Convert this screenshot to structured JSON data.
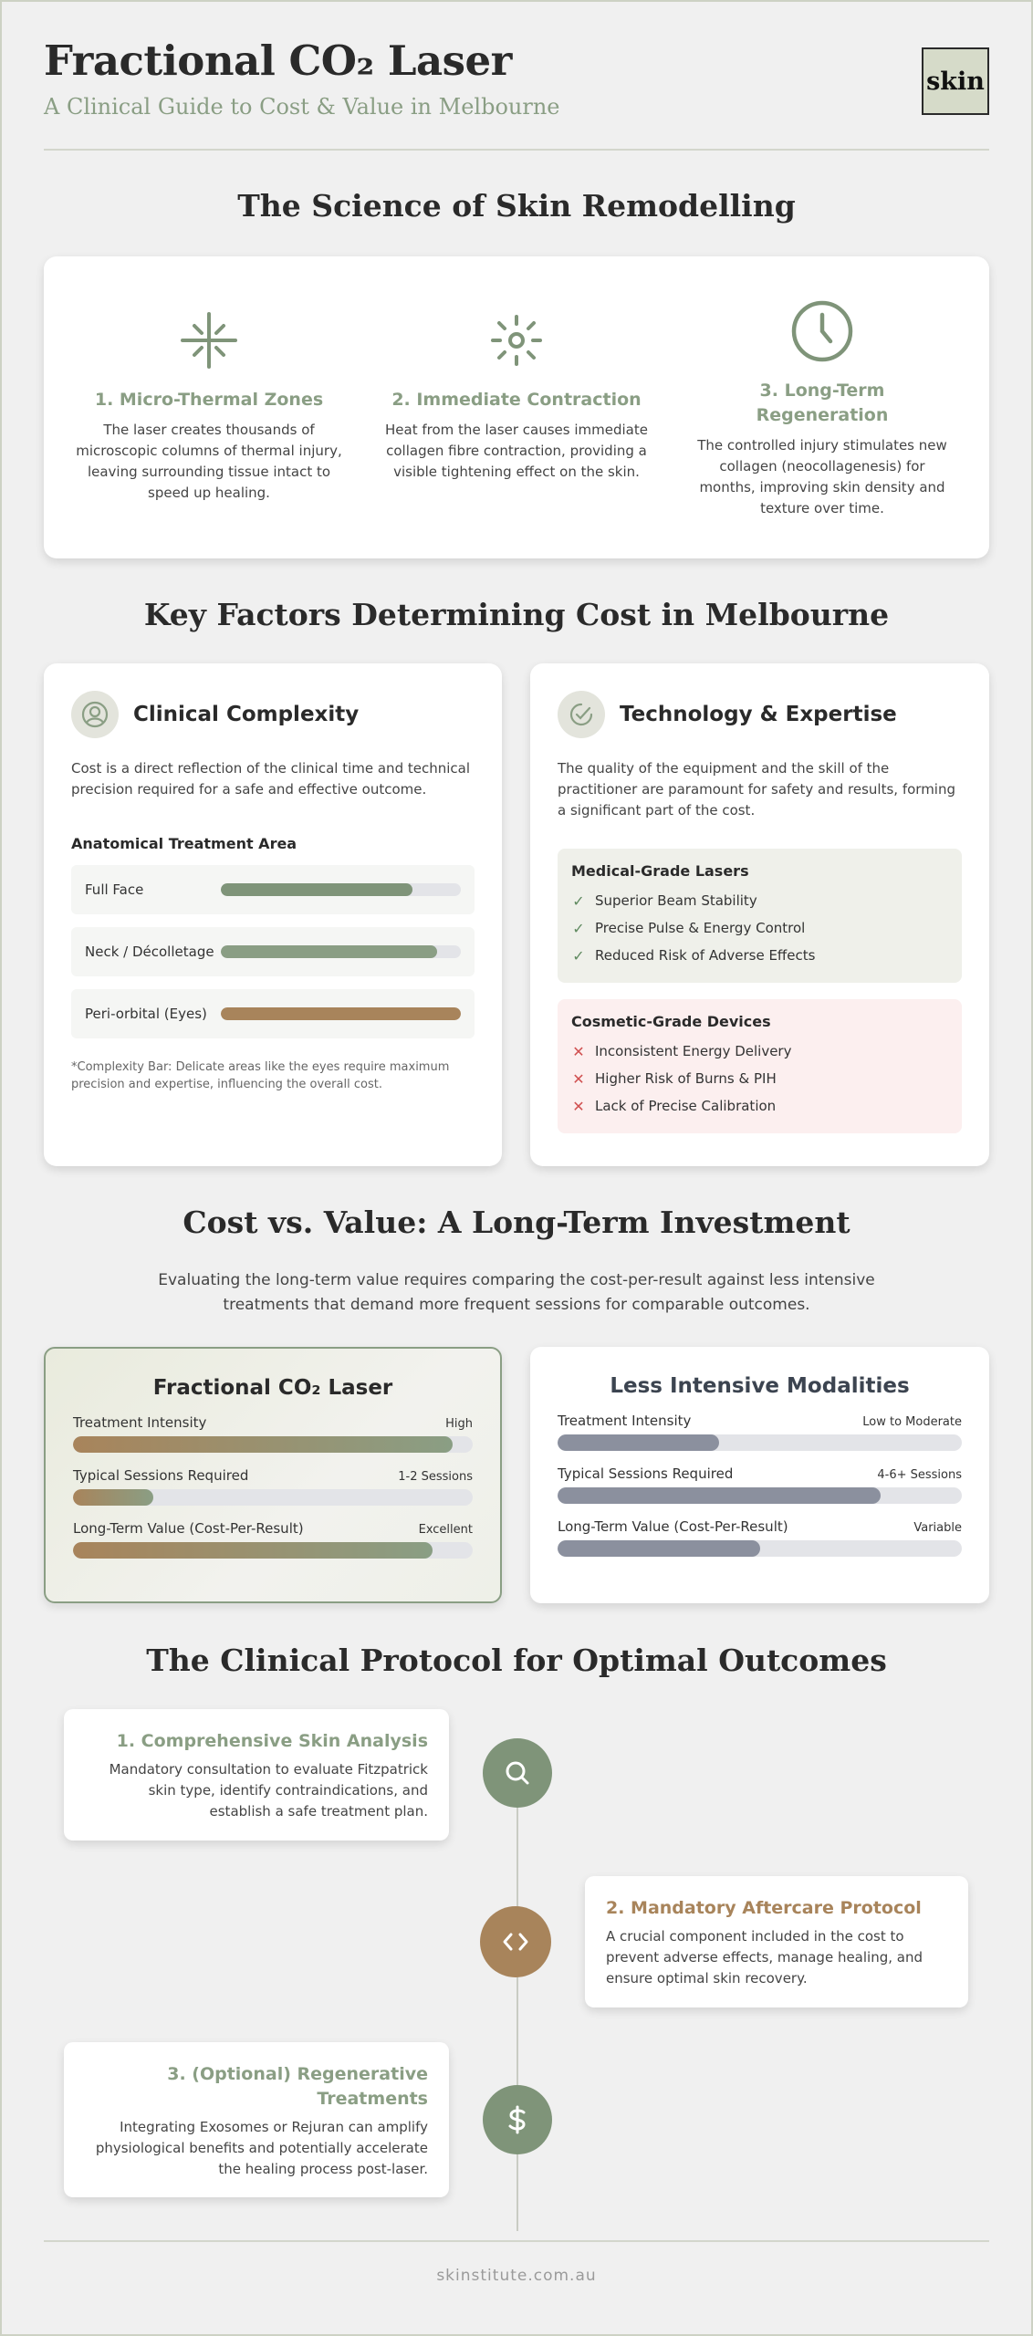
{
  "header": {
    "title": "Fractional CO₂ Laser",
    "subtitle": "A Clinical Guide to Cost & Value in Melbourne",
    "logo": "skin"
  },
  "science": {
    "title": "The Science of Skin Remodelling",
    "items": [
      {
        "icon": "sparkle-icon",
        "title": "1. Micro-Thermal Zones",
        "body": "The laser creates thousands of microscopic columns of thermal injury, leaving surrounding tissue intact to speed up healing."
      },
      {
        "icon": "sun-icon",
        "title": "2. Immediate Contraction",
        "body": "Heat from the laser causes immediate collagen fibre contraction, providing a visible tightening effect on the skin."
      },
      {
        "icon": "clock-icon",
        "title": "3. Long-Term Regeneration",
        "body": "The controlled injury stimulates new collagen (neocollagenesis) for months, improving skin density and texture over time."
      }
    ]
  },
  "factors": {
    "title": "Key Factors Determining Cost in Melbourne",
    "complexity": {
      "title": "Clinical Complexity",
      "desc": "Cost is a direct reflection of the clinical time and technical precision required for a safe and effective outcome.",
      "subheading": "Anatomical Treatment Area",
      "areas": [
        {
          "label": "Full Face",
          "level": 0.8,
          "color": "#7f9479"
        },
        {
          "label": "Neck / Décolletage",
          "level": 0.9,
          "color": "#8a9e84"
        },
        {
          "label": "Peri-orbital (Eyes)",
          "level": 1.0,
          "color": "#a8845b"
        }
      ],
      "note": "*Complexity Bar: Delicate areas like the eyes require maximum precision and expertise, influencing the overall cost."
    },
    "technology": {
      "title": "Technology & Expertise",
      "desc": "The quality of the equipment and the skill of the practitioner are paramount for safety and results, forming a significant part of the cost.",
      "medical": {
        "title": "Medical-Grade Lasers",
        "items": [
          "Superior Beam Stability",
          "Precise Pulse & Energy Control",
          "Reduced Risk of Adverse Effects"
        ]
      },
      "cosmetic": {
        "title": "Cosmetic-Grade Devices",
        "items": [
          "Inconsistent Energy Delivery",
          "Higher Risk of Burns & PIH",
          "Lack of Precise Calibration"
        ]
      }
    }
  },
  "compare": {
    "title": "Cost vs. Value: A Long-Term Investment",
    "lead": "Evaluating the long-term value requires comparing the cost-per-result against less intensive treatments that demand more frequent sessions for comparable outcomes.",
    "laser": {
      "title": "Fractional CO₂ Laser",
      "metrics": [
        {
          "label": "Treatment Intensity",
          "value": "High",
          "level": 0.95
        },
        {
          "label": "Typical Sessions Required",
          "value": "1-2 Sessions",
          "level": 0.2
        },
        {
          "label": "Long-Term Value (Cost-Per-Result)",
          "value": "Excellent",
          "level": 0.9
        }
      ]
    },
    "other": {
      "title": "Less Intensive Modalities",
      "metrics": [
        {
          "label": "Treatment Intensity",
          "value": "Low to Moderate",
          "level": 0.4
        },
        {
          "label": "Typical Sessions Required",
          "value": "4-6+ Sessions",
          "level": 0.8
        },
        {
          "label": "Long-Term Value (Cost-Per-Result)",
          "value": "Variable",
          "level": 0.5
        }
      ]
    }
  },
  "protocol": {
    "title": "The Clinical Protocol for Optimal Outcomes",
    "steps": [
      {
        "title": "1. Comprehensive Skin Analysis",
        "body": "Mandatory consultation to evaluate Fitzpatrick skin type, identify contraindications, and establish a safe treatment plan.",
        "icon": "search-icon"
      },
      {
        "title": "2. Mandatory Aftercare Protocol",
        "body": "A crucial component included in the cost to prevent adverse effects, manage healing, and ensure optimal skin recovery.",
        "icon": "code-icon"
      },
      {
        "title": "3. (Optional) Regenerative Treatments",
        "body": "Integrating Exosomes or Rejuran can amplify physiological benefits and potentially accelerate the healing process post-laser.",
        "icon": "dollar-icon"
      }
    ]
  },
  "footer": "skinstitute.com.au",
  "colors": {
    "sage": "#8a9e84",
    "bronze": "#a8845b",
    "slate": "#8b909e"
  }
}
